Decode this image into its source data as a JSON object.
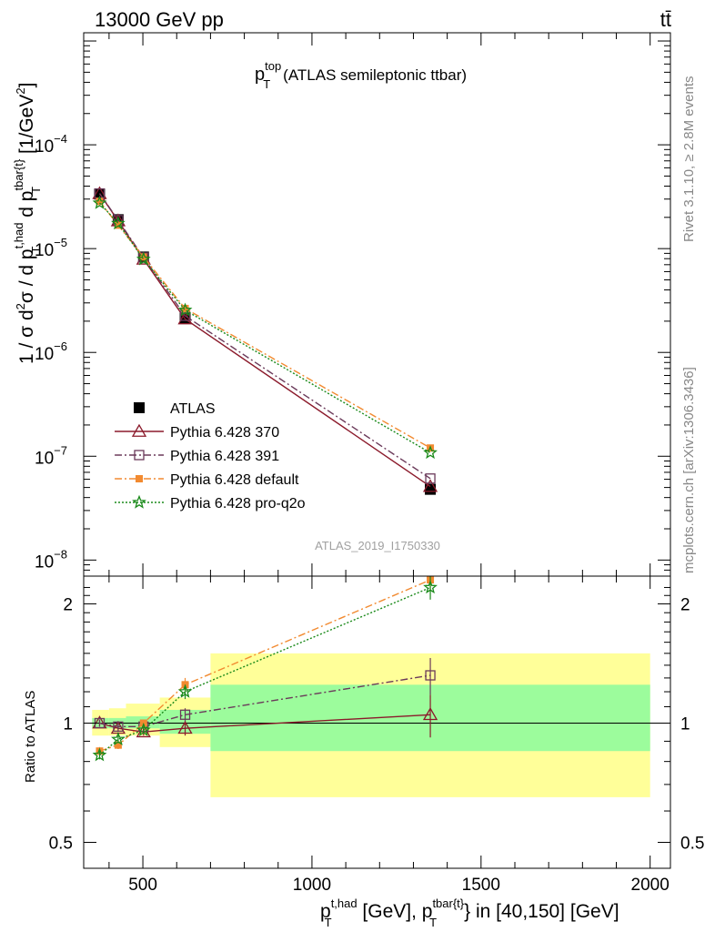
{
  "header": {
    "left": "13000 GeV pp",
    "right": "t̅t̄",
    "right_plain": "tt̄"
  },
  "side_labels": {
    "rivet": "Rivet 3.1.10, ≥ 2.8M events",
    "mcplots": "mcplots.cern.ch [arXiv:1306.3436]"
  },
  "chart_data": [
    {
      "type": "line",
      "title": "(ATLAS semileptonic ttbar)",
      "title_main": "p",
      "title_sup": "top",
      "title_sub": "T",
      "watermark": "ATLAS_2019_I1750330",
      "y_scale": "log",
      "ylim": [
        7e-09,
        0.0012
      ],
      "xlim": [
        325,
        2060
      ],
      "y_ticks": [
        {
          "value": 1e-08,
          "base": "10",
          "exp": "−8"
        },
        {
          "value": 1e-07,
          "base": "10",
          "exp": "−7"
        },
        {
          "value": 1e-06,
          "base": "10",
          "exp": "−6"
        },
        {
          "value": 1e-05,
          "base": "10",
          "exp": "−5"
        },
        {
          "value": 0.0001,
          "base": "10",
          "exp": "−4"
        }
      ],
      "ylabel": {
        "p1": "1 / σ d",
        "p1_sup": "2",
        "p2": "σ / d p",
        "p2_sup": "t,had",
        "p2_sub": "T",
        "p3": " d p",
        "p3_sup": "tbar{t}",
        "p3_sub": "T",
        "p4": " [1/GeV",
        "p4_sup": "2",
        "p5": "]"
      },
      "legend_position": "lower-left",
      "series": [
        {
          "name": "ATLAS",
          "color": "#000000",
          "marker": "square-filled",
          "dash": "none",
          "x": [
            372,
            427,
            502,
            625,
            1350
          ],
          "y": [
            3.35e-05,
            1.9e-05,
            8.3e-06,
            2.15e-06,
            4.8e-08
          ]
        },
        {
          "name": "Pythia 6.428 370",
          "color": "#8b1a2b",
          "marker": "triangle-open",
          "dash": "solid",
          "x": [
            372,
            427,
            502,
            625,
            1350
          ],
          "y": [
            3.38e-05,
            1.85e-05,
            7.9e-06,
            2.1e-06,
            5.1e-08
          ]
        },
        {
          "name": "Pythia 6.428 391",
          "color": "#6b3a5a",
          "marker": "square-open",
          "dash": "dashdot",
          "x": [
            372,
            427,
            502,
            625,
            1350
          ],
          "y": [
            3.4e-05,
            1.88e-05,
            8.2e-06,
            2.25e-06,
            6.1e-08
          ]
        },
        {
          "name": "Pythia 6.428 default",
          "color": "#f28a30",
          "marker": "square-filled-small",
          "dash": "dashdot",
          "x": [
            372,
            427,
            502,
            625,
            1350
          ],
          "y": [
            2.85e-05,
            1.68e-05,
            8.3e-06,
            2.65e-06,
            1.2e-07
          ]
        },
        {
          "name": "Pythia 6.428 pro-q2o",
          "color": "#1a8a1a",
          "marker": "star-open",
          "dash": "dotted",
          "x": [
            372,
            427,
            502,
            625,
            1350
          ],
          "y": [
            2.75e-05,
            1.75e-05,
            7.9e-06,
            2.55e-06,
            1.08e-07
          ]
        }
      ]
    },
    {
      "type": "line",
      "y_scale": "log",
      "ylim": [
        0.43,
        2.35
      ],
      "xlim": [
        325,
        2060
      ],
      "ylabel": "Ratio to ATLAS",
      "xlabel": {
        "a": "p",
        "a_sup": "t,had",
        "a_sub": "T",
        "b": " [GeV], p",
        "b_sup": "tbar{t}",
        "b_sub": "T",
        "c": "} in [40,150] [GeV]"
      },
      "x_ticks": [
        {
          "value": 500,
          "label": "500"
        },
        {
          "value": 1000,
          "label": "1000"
        },
        {
          "value": 1500,
          "label": "1500"
        },
        {
          "value": 2000,
          "label": "2000"
        }
      ],
      "y_ticks": [
        {
          "value": 0.5,
          "label": "0.5"
        },
        {
          "value": 1,
          "label": "1"
        },
        {
          "value": 2,
          "label": "2"
        }
      ],
      "uncertainty_bins": [
        {
          "x0": 350,
          "x1": 400,
          "stat": [
            0.97,
            1.03
          ],
          "total": [
            0.93,
            1.08
          ]
        },
        {
          "x0": 400,
          "x1": 450,
          "stat": [
            0.97,
            1.03
          ],
          "total": [
            0.93,
            1.09
          ]
        },
        {
          "x0": 450,
          "x1": 550,
          "stat": [
            0.97,
            1.04
          ],
          "total": [
            0.93,
            1.12
          ]
        },
        {
          "x0": 550,
          "x1": 700,
          "stat": [
            0.94,
            1.08
          ],
          "total": [
            0.87,
            1.16
          ]
        },
        {
          "x0": 700,
          "x1": 2000,
          "stat": [
            0.85,
            1.25
          ],
          "total": [
            0.65,
            1.5
          ]
        }
      ],
      "series": [
        {
          "name": "Pythia 6.428 370",
          "color": "#8b1a2b",
          "marker": "triangle-open",
          "dash": "solid",
          "x": [
            372,
            427,
            502,
            625,
            1350
          ],
          "y": [
            1.0,
            0.97,
            0.95,
            0.97,
            1.05
          ],
          "err": [
            0.02,
            0.02,
            0.02,
            0.04,
            0.13
          ]
        },
        {
          "name": "Pythia 6.428 391",
          "color": "#6b3a5a",
          "marker": "square-open",
          "dash": "dashdot",
          "x": [
            372,
            427,
            502,
            625,
            1350
          ],
          "y": [
            1.0,
            0.98,
            0.98,
            1.05,
            1.32
          ],
          "err": [
            0.02,
            0.02,
            0.02,
            0.04,
            0.14
          ]
        },
        {
          "name": "Pythia 6.428 default",
          "color": "#f28a30",
          "marker": "square-filled-small",
          "dash": "dashdot",
          "x": [
            372,
            427,
            502,
            625,
            1350
          ],
          "y": [
            0.85,
            0.88,
            1.0,
            1.25,
            2.3
          ],
          "err": [
            0.02,
            0.02,
            0.02,
            0.05,
            0.15
          ]
        },
        {
          "name": "Pythia 6.428 pro-q2o",
          "color": "#1a8a1a",
          "marker": "star-open",
          "dash": "dotted",
          "x": [
            372,
            427,
            502,
            625,
            1350
          ],
          "y": [
            0.83,
            0.91,
            0.96,
            1.2,
            2.2
          ],
          "err": [
            0.02,
            0.02,
            0.02,
            0.05,
            0.15
          ]
        }
      ]
    }
  ]
}
